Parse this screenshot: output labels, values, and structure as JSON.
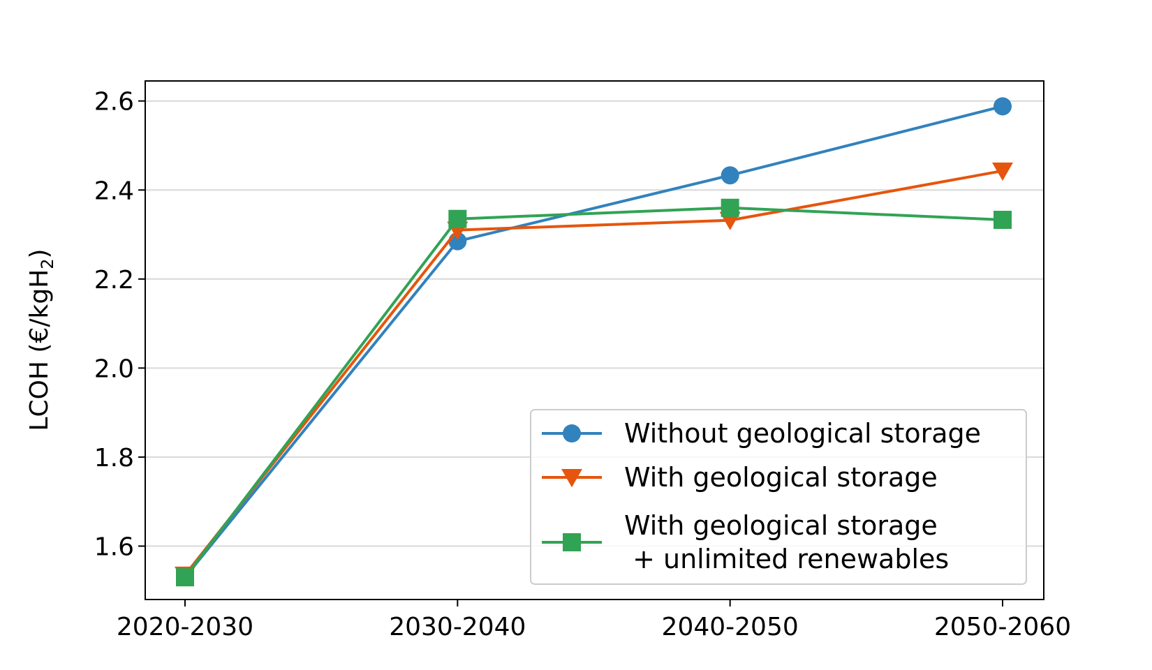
{
  "chart_data": {
    "type": "line",
    "categories": [
      "2020-2030",
      "2030-2040",
      "2040-2050",
      "2050-2060"
    ],
    "ylabel": "LCOH (€/kgH₂)",
    "ylabel_main": "LCOH (€/kgH",
    "ylabel_sub": "2",
    "ylabel_close": ")",
    "xlabel": "",
    "title": "",
    "ylim": [
      1.48,
      2.645
    ],
    "yticks": [
      1.6,
      1.8,
      2.0,
      2.2,
      2.4,
      2.6
    ],
    "ytick_labels": [
      "1.6",
      "1.8",
      "2.0",
      "2.2",
      "2.4",
      "2.6"
    ],
    "grid": "horizontal",
    "legend_position": "lower-right",
    "series": [
      {
        "name": "Without geological storage",
        "name_lines": [
          "Without geological storage"
        ],
        "values": [
          1.53,
          2.285,
          2.433,
          2.588
        ],
        "color": "#3182bd",
        "marker": "circle"
      },
      {
        "name": "With geological storage",
        "name_lines": [
          "With geological storage"
        ],
        "values": [
          1.535,
          2.31,
          2.332,
          2.443
        ],
        "color": "#e6550d",
        "marker": "triangle-down"
      },
      {
        "name": "With geological storage + unlimited renewables",
        "name_lines": [
          "With geological storage",
          " + unlimited renewables"
        ],
        "values": [
          1.53,
          2.335,
          2.36,
          2.333
        ],
        "color": "#31a354",
        "marker": "square"
      }
    ]
  }
}
